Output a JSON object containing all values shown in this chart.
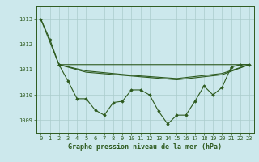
{
  "title": "Graphe pression niveau de la mer (hPa)",
  "bg_color": "#cce8ec",
  "grid_color": "#aacccc",
  "line_color": "#2d5a1e",
  "marker_color": "#2d5a1e",
  "xlim": [
    -0.5,
    23.5
  ],
  "ylim": [
    1008.5,
    1013.5
  ],
  "yticks": [
    1009,
    1010,
    1011,
    1012,
    1013
  ],
  "xticks": [
    0,
    1,
    2,
    3,
    4,
    5,
    6,
    7,
    8,
    9,
    10,
    11,
    12,
    13,
    14,
    15,
    16,
    17,
    18,
    19,
    20,
    21,
    22,
    23
  ],
  "series": [
    {
      "x": [
        0,
        1,
        2
      ],
      "y": [
        1013.0,
        1012.2,
        1011.2
      ],
      "marker": true
    },
    {
      "x": [
        2,
        3,
        4,
        5,
        6,
        7,
        8,
        9,
        10,
        11,
        12,
        13,
        14,
        15,
        16,
        17,
        18,
        19,
        20,
        21,
        22,
        23
      ],
      "y": [
        1011.2,
        1010.55,
        1009.85,
        1009.85,
        1009.4,
        1009.2,
        1009.7,
        1009.75,
        1010.2,
        1010.2,
        1010.0,
        1009.35,
        1008.85,
        1009.2,
        1009.2,
        1009.75,
        1010.35,
        1010.0,
        1010.3,
        1011.1,
        1011.2,
        1011.2
      ],
      "marker": true
    },
    {
      "x": [
        0,
        2,
        23
      ],
      "y": [
        1013.0,
        1011.2,
        1011.2
      ],
      "marker": false
    },
    {
      "x": [
        2,
        5,
        10,
        15,
        20,
        23
      ],
      "y": [
        1011.2,
        1010.9,
        1010.75,
        1010.6,
        1010.8,
        1011.2
      ],
      "marker": false
    },
    {
      "x": [
        2,
        5,
        10,
        15,
        20,
        23
      ],
      "y": [
        1011.2,
        1010.95,
        1010.78,
        1010.65,
        1010.85,
        1011.2
      ],
      "marker": false
    }
  ]
}
